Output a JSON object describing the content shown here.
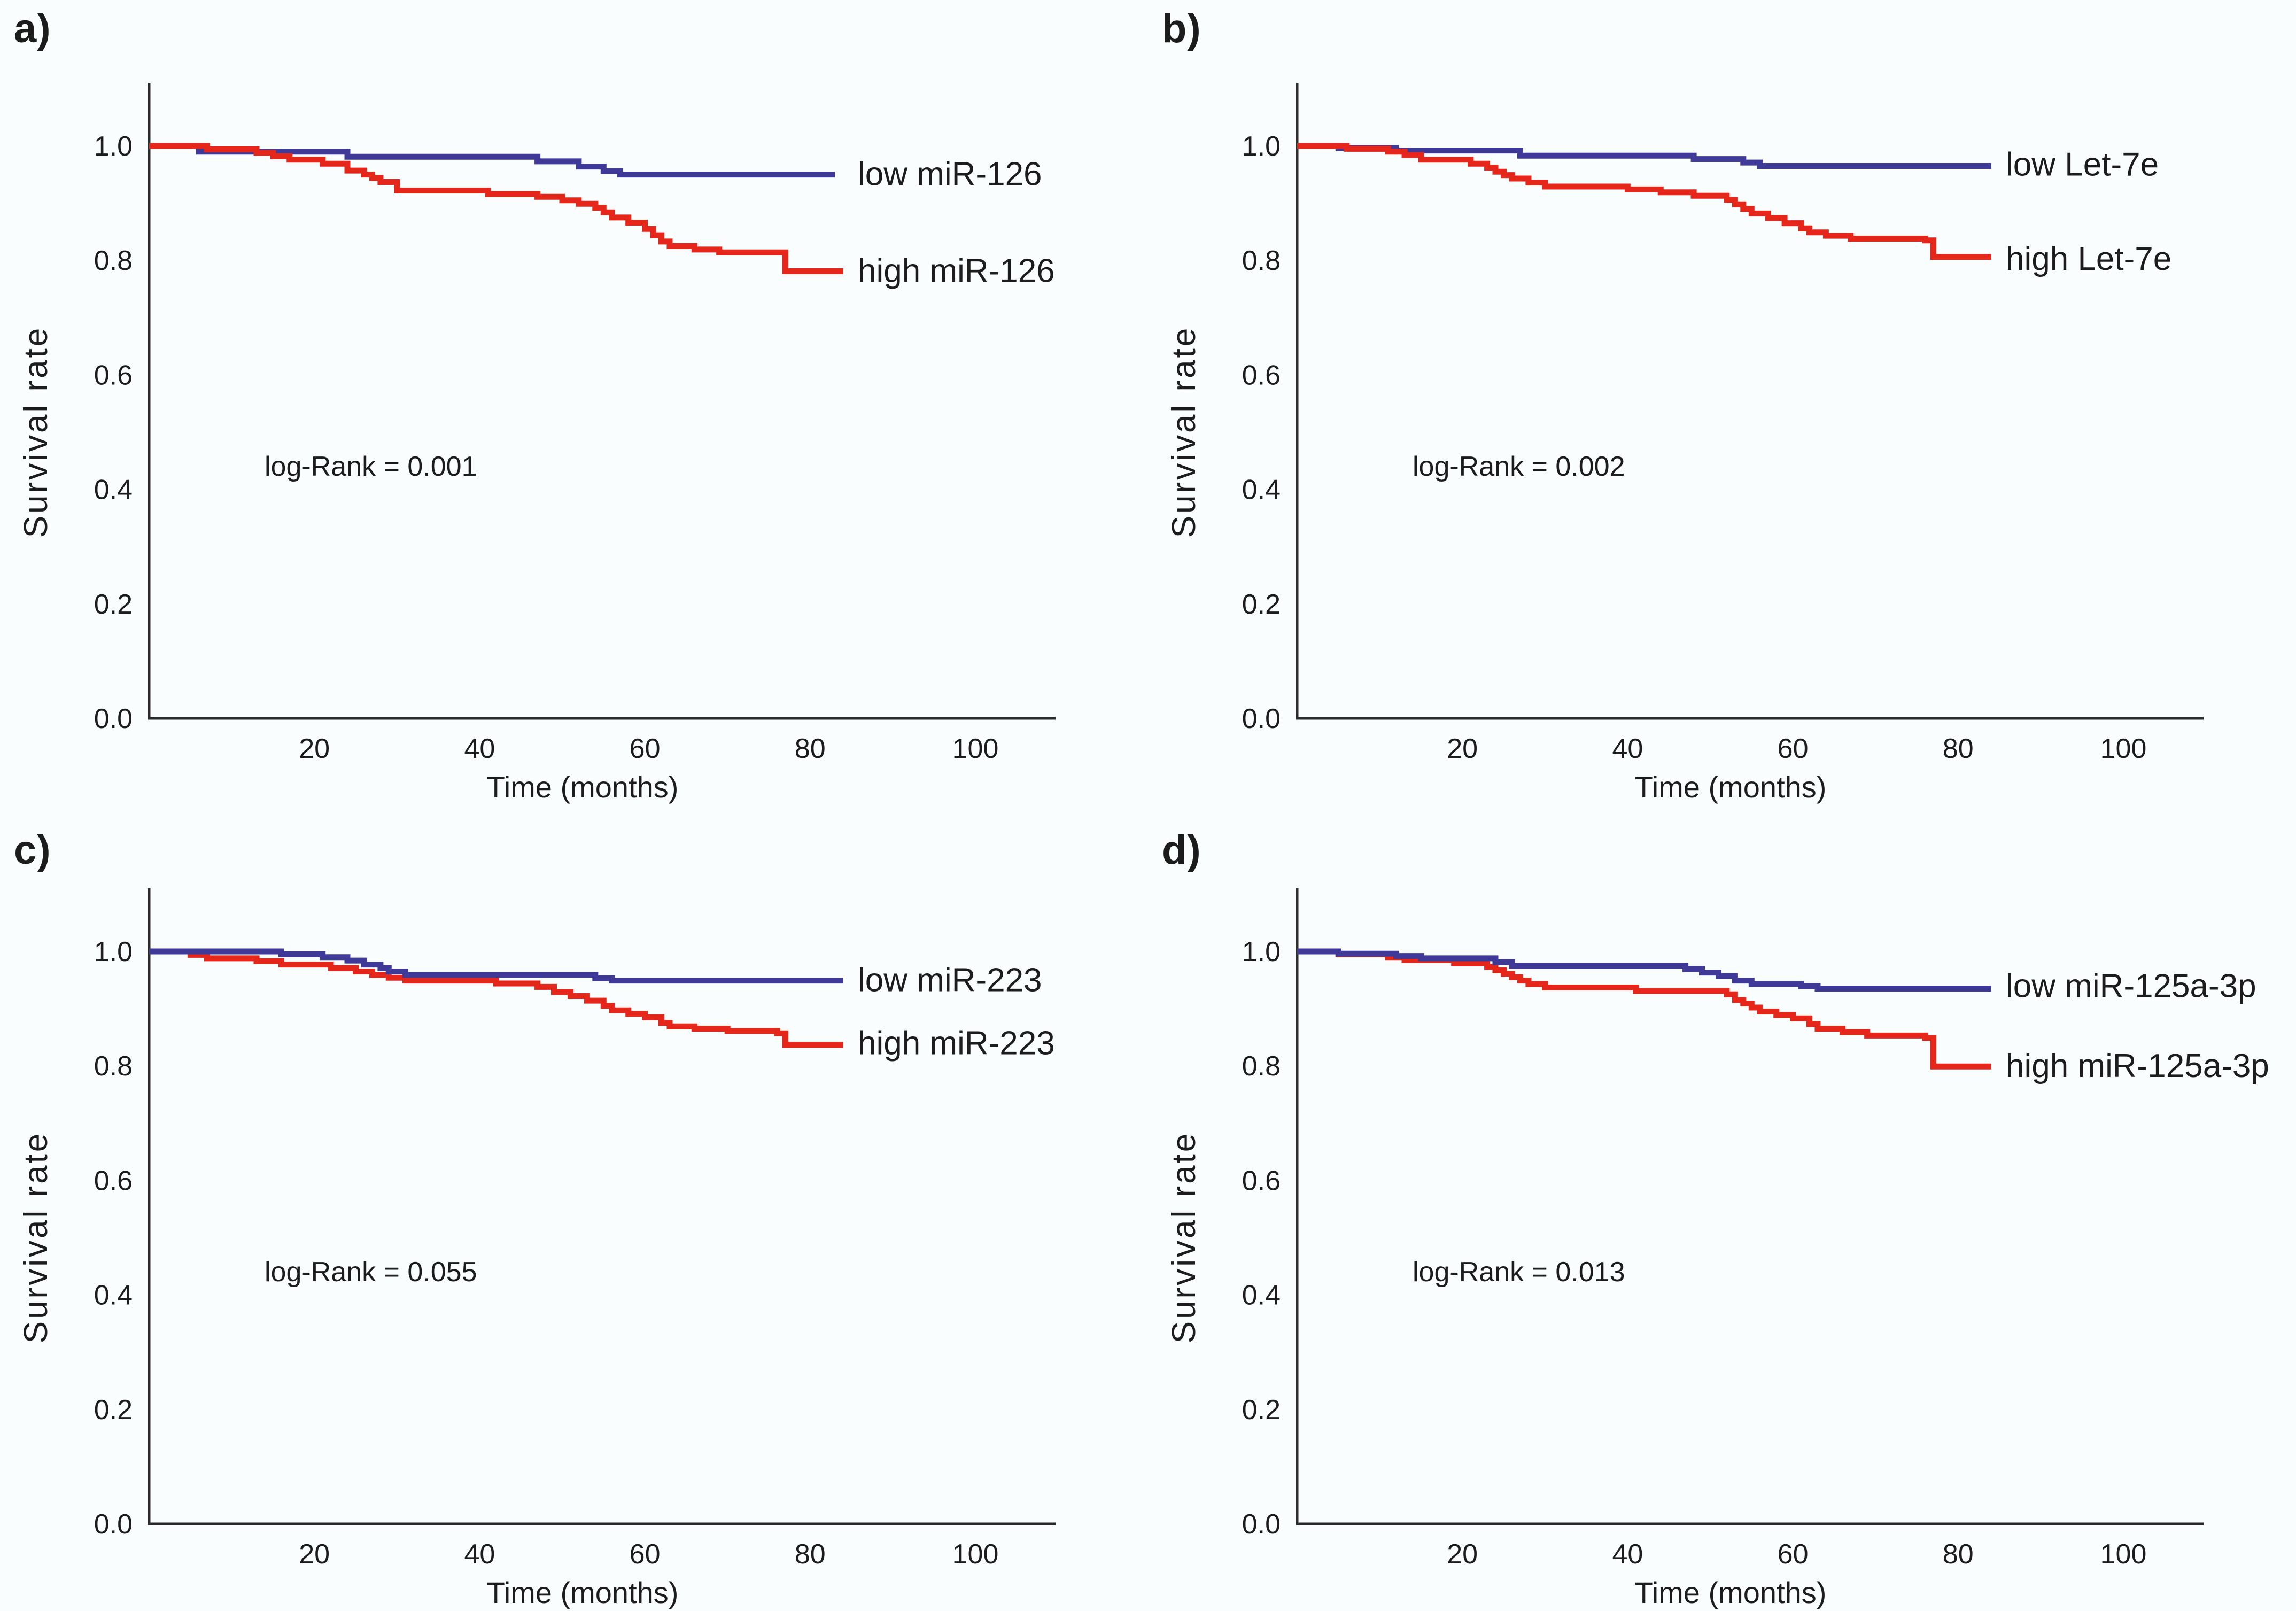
{
  "figure": {
    "background_color": "#FAFDFE",
    "text_color": "#1c1c1c",
    "axis_color": "#2b2b2b",
    "low_color": "#3F3A98",
    "high_color": "#E4261B"
  },
  "chart_data": [
    {
      "panel_label": "a)",
      "type": "line",
      "subtype": "kaplan-meier-step",
      "xlabel": "Time (months)",
      "ylabel": "Survival rate",
      "annotation": "log-Rank = 0.001",
      "xlim": [
        0,
        110
      ],
      "ylim": [
        0.0,
        1.08
      ],
      "x_ticks": [
        20,
        40,
        60,
        80,
        100
      ],
      "y_ticks": [
        "1.0",
        "0.8",
        "0.6",
        "0.4",
        "0.2",
        "0.0"
      ],
      "grid": false,
      "legend_position": "right-of-curve-end",
      "series": [
        {
          "name": "low miR-126",
          "role": "low",
          "color": "#3F3A98",
          "end_time": 83,
          "label_v": 0.951,
          "points": [
            [
              0,
              1.0
            ],
            [
              6,
              0.99
            ],
            [
              24,
              0.981
            ],
            [
              47,
              0.973
            ],
            [
              52,
              0.964
            ],
            [
              55,
              0.956
            ],
            [
              57,
              0.95
            ]
          ]
        },
        {
          "name": "high miR-126",
          "role": "high",
          "color": "#E4261B",
          "end_time": 84,
          "label_v": 0.782,
          "points": [
            [
              0,
              1.0
            ],
            [
              7,
              0.994
            ],
            [
              13,
              0.988
            ],
            [
              15,
              0.982
            ],
            [
              17,
              0.976
            ],
            [
              21,
              0.969
            ],
            [
              24,
              0.957
            ],
            [
              26,
              0.95
            ],
            [
              27,
              0.944
            ],
            [
              28,
              0.937
            ],
            [
              30,
              0.922
            ],
            [
              41,
              0.916
            ],
            [
              47,
              0.911
            ],
            [
              50,
              0.905
            ],
            [
              52,
              0.899
            ],
            [
              54,
              0.892
            ],
            [
              55,
              0.884
            ],
            [
              56,
              0.875
            ],
            [
              58,
              0.866
            ],
            [
              60,
              0.855
            ],
            [
              61,
              0.844
            ],
            [
              62,
              0.833
            ],
            [
              63,
              0.825
            ],
            [
              66,
              0.819
            ],
            [
              69,
              0.814
            ],
            [
              77,
              0.781
            ]
          ]
        }
      ],
      "z_order": [
        "low",
        "high"
      ]
    },
    {
      "panel_label": "b)",
      "type": "line",
      "subtype": "kaplan-meier-step",
      "xlabel": "Time (months)",
      "ylabel": "Survival rate",
      "annotation": "log-Rank = 0.002",
      "xlim": [
        0,
        110
      ],
      "ylim": [
        0.0,
        1.08
      ],
      "x_ticks": [
        20,
        40,
        60,
        80,
        100
      ],
      "y_ticks": [
        "1.0",
        "0.8",
        "0.6",
        "0.4",
        "0.2",
        "0.0"
      ],
      "grid": false,
      "legend_position": "right-of-curve-end",
      "series": [
        {
          "name": "low Let-7e",
          "role": "low",
          "color": "#3F3A98",
          "end_time": 84,
          "label_v": 0.968,
          "points": [
            [
              0,
              1.0
            ],
            [
              5,
              0.996
            ],
            [
              12,
              0.992
            ],
            [
              27,
              0.983
            ],
            [
              48,
              0.977
            ],
            [
              54,
              0.971
            ],
            [
              56,
              0.965
            ]
          ]
        },
        {
          "name": "high Let-7e",
          "role": "high",
          "color": "#E4261B",
          "end_time": 84,
          "label_v": 0.803,
          "points": [
            [
              0,
              1.0
            ],
            [
              6,
              0.995
            ],
            [
              11,
              0.99
            ],
            [
              13,
              0.984
            ],
            [
              15,
              0.976
            ],
            [
              21,
              0.969
            ],
            [
              23,
              0.962
            ],
            [
              24,
              0.955
            ],
            [
              25,
              0.949
            ],
            [
              26,
              0.943
            ],
            [
              28,
              0.936
            ],
            [
              30,
              0.929
            ],
            [
              40,
              0.924
            ],
            [
              44,
              0.919
            ],
            [
              48,
              0.913
            ],
            [
              52,
              0.906
            ],
            [
              53,
              0.898
            ],
            [
              54,
              0.89
            ],
            [
              55,
              0.882
            ],
            [
              57,
              0.874
            ],
            [
              59,
              0.865
            ],
            [
              61,
              0.856
            ],
            [
              62,
              0.849
            ],
            [
              64,
              0.843
            ],
            [
              67,
              0.838
            ],
            [
              76,
              0.835
            ],
            [
              77,
              0.806
            ]
          ]
        }
      ],
      "z_order": [
        "low",
        "high"
      ]
    },
    {
      "panel_label": "c)",
      "type": "line",
      "subtype": "kaplan-meier-step",
      "xlabel": "Time (months)",
      "ylabel": "Survival rate",
      "annotation": "log-Rank = 0.055",
      "xlim": [
        0,
        110
      ],
      "ylim": [
        0.0,
        1.08
      ],
      "x_ticks": [
        20,
        40,
        60,
        80,
        100
      ],
      "y_ticks": [
        "1.0",
        "0.8",
        "0.6",
        "0.4",
        "0.2",
        "0.0"
      ],
      "grid": false,
      "legend_position": "right-of-curve-end",
      "series": [
        {
          "name": "low miR-223",
          "role": "low",
          "color": "#3F3A98",
          "end_time": 84,
          "label_v": 0.95,
          "points": [
            [
              0,
              1.0
            ],
            [
              16,
              0.995
            ],
            [
              21,
              0.99
            ],
            [
              24,
              0.984
            ],
            [
              26,
              0.977
            ],
            [
              28,
              0.971
            ],
            [
              29,
              0.965
            ],
            [
              31,
              0.959
            ],
            [
              54,
              0.953
            ],
            [
              56,
              0.949
            ]
          ]
        },
        {
          "name": "high miR-223",
          "role": "high",
          "color": "#E4261B",
          "end_time": 84,
          "label_v": 0.84,
          "points": [
            [
              0,
              1.0
            ],
            [
              5,
              0.994
            ],
            [
              7,
              0.988
            ],
            [
              13,
              0.983
            ],
            [
              16,
              0.977
            ],
            [
              22,
              0.971
            ],
            [
              25,
              0.965
            ],
            [
              27,
              0.959
            ],
            [
              29,
              0.954
            ],
            [
              31,
              0.949
            ],
            [
              42,
              0.944
            ],
            [
              47,
              0.938
            ],
            [
              49,
              0.929
            ],
            [
              51,
              0.922
            ],
            [
              53,
              0.914
            ],
            [
              55,
              0.905
            ],
            [
              56,
              0.897
            ],
            [
              58,
              0.891
            ],
            [
              60,
              0.885
            ],
            [
              62,
              0.875
            ],
            [
              63,
              0.869
            ],
            [
              66,
              0.865
            ],
            [
              70,
              0.861
            ],
            [
              76,
              0.857
            ],
            [
              77,
              0.837
            ]
          ]
        }
      ],
      "z_order": [
        "high",
        "low"
      ]
    },
    {
      "panel_label": "d)",
      "type": "line",
      "subtype": "kaplan-meier-step",
      "xlabel": "Time (months)",
      "ylabel": "Survival rate",
      "annotation": "log-Rank = 0.013",
      "xlim": [
        0,
        110
      ],
      "ylim": [
        0.0,
        1.08
      ],
      "x_ticks": [
        20,
        40,
        60,
        80,
        100
      ],
      "y_ticks": [
        "1.0",
        "0.8",
        "0.6",
        "0.4",
        "0.2",
        "0.0"
      ],
      "grid": false,
      "legend_position": "right-of-curve-end",
      "series": [
        {
          "name": "low miR-125a-3p",
          "role": "low",
          "color": "#3F3A98",
          "end_time": 84,
          "label_v": 0.94,
          "points": [
            [
              0,
              1.0
            ],
            [
              5,
              0.996
            ],
            [
              12,
              0.992
            ],
            [
              15,
              0.988
            ],
            [
              24,
              0.981
            ],
            [
              26,
              0.975
            ],
            [
              47,
              0.969
            ],
            [
              49,
              0.963
            ],
            [
              51,
              0.957
            ],
            [
              53,
              0.949
            ],
            [
              55,
              0.943
            ],
            [
              61,
              0.939
            ],
            [
              63,
              0.935
            ]
          ]
        },
        {
          "name": "high miR-125a-3p",
          "role": "high",
          "color": "#E4261B",
          "end_time": 84,
          "label_v": 0.8,
          "points": [
            [
              0,
              1.0
            ],
            [
              5,
              0.995
            ],
            [
              11,
              0.99
            ],
            [
              13,
              0.985
            ],
            [
              19,
              0.979
            ],
            [
              23,
              0.973
            ],
            [
              24,
              0.967
            ],
            [
              25,
              0.961
            ],
            [
              26,
              0.955
            ],
            [
              27,
              0.949
            ],
            [
              28,
              0.943
            ],
            [
              30,
              0.937
            ],
            [
              41,
              0.931
            ],
            [
              52,
              0.925
            ],
            [
              53,
              0.915
            ],
            [
              54,
              0.909
            ],
            [
              55,
              0.902
            ],
            [
              56,
              0.895
            ],
            [
              58,
              0.889
            ],
            [
              60,
              0.883
            ],
            [
              62,
              0.873
            ],
            [
              63,
              0.865
            ],
            [
              66,
              0.859
            ],
            [
              69,
              0.853
            ],
            [
              76,
              0.849
            ],
            [
              77,
              0.799
            ]
          ]
        }
      ],
      "z_order": [
        "high",
        "low"
      ]
    }
  ]
}
